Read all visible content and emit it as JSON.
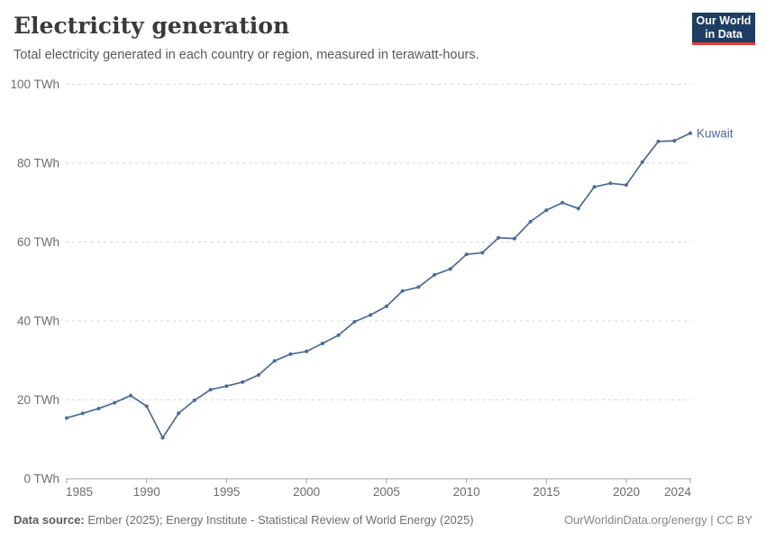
{
  "header": {
    "title": "Electricity generation",
    "subtitle": "Total electricity generated in each country or region, measured in terawatt-hours."
  },
  "logo": {
    "line1": "Our World",
    "line2": "in Data",
    "bg_color": "#1d3d63",
    "accent_color": "#e63e36"
  },
  "chart_data": {
    "type": "line",
    "title": "Electricity generation",
    "ylabel": "",
    "xlabel": "",
    "unit": "TWh",
    "tick_suffix": " TWh",
    "xlim": [
      1985,
      2024
    ],
    "ylim": [
      0,
      100
    ],
    "grid": "horizontal-dashed",
    "legend_position": "end-of-line-label",
    "x_ticks": [
      1985,
      1990,
      1995,
      2000,
      2005,
      2010,
      2015,
      2020,
      2024
    ],
    "y_ticks": [
      0,
      20,
      40,
      60,
      80,
      100
    ],
    "series": [
      {
        "name": "Kuwait",
        "color": "#4c6a9c",
        "x": [
          1985,
          1986,
          1987,
          1988,
          1989,
          1990,
          1991,
          1992,
          1993,
          1994,
          1995,
          1996,
          1997,
          1998,
          1999,
          2000,
          2001,
          2002,
          2003,
          2004,
          2005,
          2006,
          2007,
          2008,
          2009,
          2010,
          2011,
          2012,
          2013,
          2014,
          2015,
          2016,
          2017,
          2018,
          2019,
          2020,
          2021,
          2022,
          2023,
          2024
        ],
        "values": [
          15.4,
          16.6,
          17.8,
          19.3,
          21.1,
          18.4,
          10.4,
          16.6,
          19.9,
          22.6,
          23.5,
          24.5,
          26.3,
          29.9,
          31.6,
          32.3,
          34.3,
          36.4,
          39.8,
          41.5,
          43.7,
          47.6,
          48.6,
          51.7,
          53.2,
          56.9,
          57.3,
          61.1,
          60.9,
          65.2,
          68.1,
          70.0,
          68.5,
          74.0,
          74.9,
          74.5,
          80.3,
          85.5,
          85.7,
          87.6
        ]
      }
    ],
    "colors": {
      "gridline": "#d9d9d9",
      "axis": "#a5a5a5",
      "tick_label": "#6e6e6e"
    }
  },
  "footer": {
    "source_label": "Data source:",
    "source_value": " Ember (2025); Energy Institute - Statistical Review of World Energy (2025)",
    "link": "OurWorldinData.org/energy | CC BY"
  }
}
